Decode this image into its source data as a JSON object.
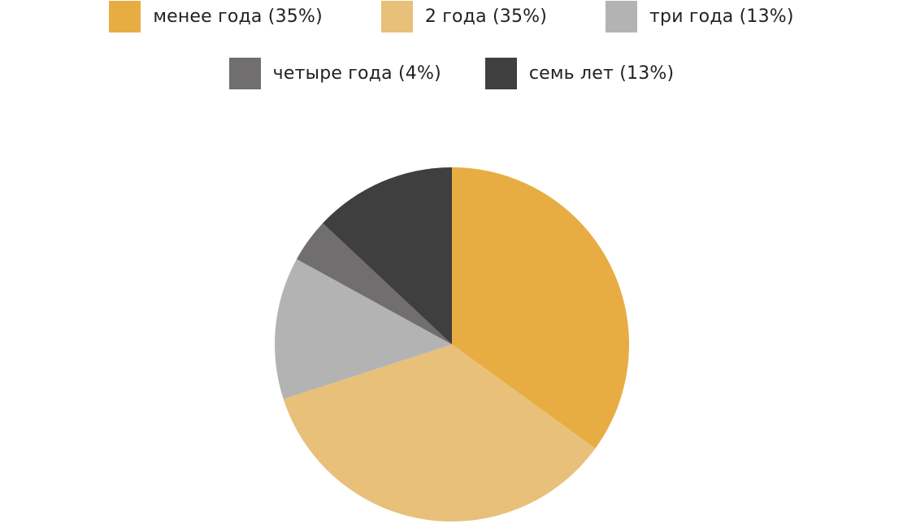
{
  "chart_data": {
    "type": "pie",
    "title": "",
    "legend_position": "top",
    "slices": [
      {
        "label": "менее года (35%)",
        "value": 35,
        "color": "#E8AD42"
      },
      {
        "label": "2 года (35%)",
        "value": 35,
        "color": "#E8C07A"
      },
      {
        "label": "три года (13%)",
        "value": 13,
        "color": "#B3B3B3"
      },
      {
        "label": "четыре года (4%)",
        "value": 4,
        "color": "#706E6E"
      },
      {
        "label": "семь лет (13%)",
        "value": 13,
        "color": "#403F3F"
      }
    ]
  }
}
